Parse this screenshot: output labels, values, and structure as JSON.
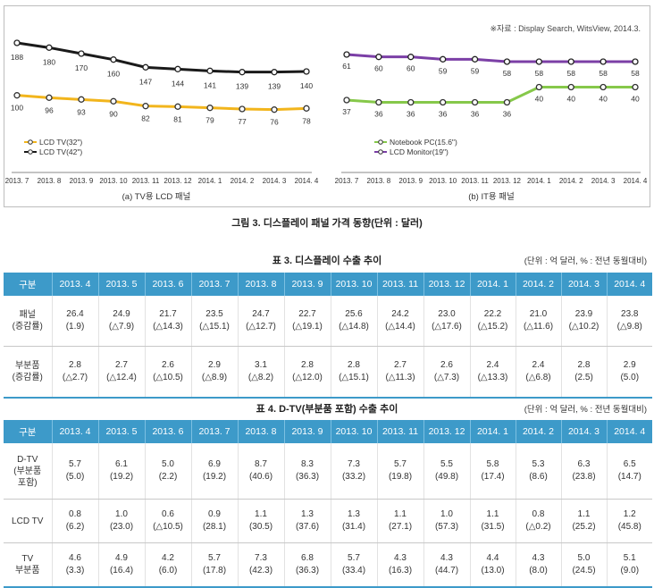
{
  "figure": {
    "source": "※자료 : Display Search, WitsView, 2014.3.",
    "caption": "그림 3. 디스플레이 패널 가격 동향(단위 : 달러)",
    "charts": [
      {
        "subtitle": "(a) TV용 LCD 패널",
        "legend": [
          "LCD TV(32\")",
          "LCD TV(42\")"
        ],
        "categories": [
          "2013. 7",
          "2013. 8",
          "2013. 9",
          "2013. 10",
          "2013. 11",
          "2013. 12",
          "2014. 1",
          "2014. 2",
          "2014. 3",
          "2014. 4"
        ]
      },
      {
        "subtitle": "(b) IT용 패널",
        "legend": [
          "Notebook PC(15.6\")",
          "LCD Monitor(19\")"
        ],
        "categories": [
          "2013. 7",
          "2013. 8",
          "2013. 9",
          "2013. 10",
          "2013. 11",
          "2013. 12",
          "2014. 1",
          "2014. 2",
          "2014. 3",
          "2014. 4"
        ]
      }
    ]
  },
  "chart_data": [
    {
      "type": "line",
      "categories": [
        "2013. 7",
        "2013. 8",
        "2013. 9",
        "2013. 10",
        "2013. 11",
        "2013. 12",
        "2014. 1",
        "2014. 2",
        "2014. 3",
        "2014. 4"
      ],
      "series": [
        {
          "name": "LCD TV(42\")",
          "values": [
            188,
            180,
            170,
            160,
            147,
            144,
            141,
            139,
            139,
            140
          ],
          "color": "#1a1a1a"
        },
        {
          "name": "LCD TV(32\")",
          "values": [
            100,
            96,
            93,
            90,
            82,
            81,
            79,
            77,
            76,
            78
          ],
          "color": "#f2b51c"
        }
      ],
      "ylim": [
        60,
        200
      ]
    },
    {
      "type": "line",
      "categories": [
        "2013. 7",
        "2013. 8",
        "2013. 9",
        "2013. 10",
        "2013. 11",
        "2013. 12",
        "2014. 1",
        "2014. 2",
        "2014. 3",
        "2014. 4"
      ],
      "series": [
        {
          "name": "LCD Monitor(19\")",
          "values": [
            61,
            60,
            60,
            59,
            59,
            58,
            58,
            58,
            58,
            58
          ],
          "color": "#7b3fa6"
        },
        {
          "name": "Notebook PC(15.6\")",
          "values": [
            37,
            36,
            36,
            36,
            36,
            36,
            40,
            40,
            40,
            40
          ],
          "color": "#86c84a"
        }
      ],
      "ylim": [
        25,
        70
      ]
    }
  ],
  "table3": {
    "title": "표 3. 디스플레이 수출 추이",
    "unit": "(단위 : 억 달러, % : 전년 동월대비)",
    "headers": [
      "구분",
      "2013. 4",
      "2013. 5",
      "2013. 6",
      "2013. 7",
      "2013. 8",
      "2013. 9",
      "2013. 10",
      "2013. 11",
      "2013. 12",
      "2014. 1",
      "2014. 2",
      "2014. 3",
      "2014. 4"
    ],
    "rows": [
      {
        "label": [
          "패널",
          "(증감률)"
        ],
        "values": [
          "26.4",
          "24.9",
          "21.7",
          "23.5",
          "24.7",
          "22.7",
          "25.6",
          "24.2",
          "23.0",
          "22.2",
          "21.0",
          "23.9",
          "23.8"
        ],
        "changes": [
          "(1.9)",
          "(△7.9)",
          "(△14.3)",
          "(△15.1)",
          "(△12.7)",
          "(△19.1)",
          "(△14.8)",
          "(△14.4)",
          "(△17.6)",
          "(△15.2)",
          "(△11.6)",
          "(△10.2)",
          "(△9.8)"
        ]
      },
      {
        "label": [
          "부분품",
          "(증감률)"
        ],
        "values": [
          "2.8",
          "2.7",
          "2.6",
          "2.9",
          "3.1",
          "2.8",
          "2.8",
          "2.7",
          "2.6",
          "2.4",
          "2.4",
          "2.8",
          "2.9"
        ],
        "changes": [
          "(△2.7)",
          "(△12.4)",
          "(△10.5)",
          "(△8.9)",
          "(△8.2)",
          "(△12.0)",
          "(△15.1)",
          "(△11.3)",
          "(△7.3)",
          "(△13.3)",
          "(△6.8)",
          "(2.5)",
          "(5.0)"
        ]
      }
    ]
  },
  "table4": {
    "title": "표 4. D-TV(부분품 포함) 수출 추이",
    "unit": "(단위 : 억 달러, % : 전년 동월대비)",
    "headers": [
      "구분",
      "2013. 4",
      "2013. 5",
      "2013. 6",
      "2013. 7",
      "2013. 8",
      "2013. 9",
      "2013. 10",
      "2013. 11",
      "2013. 12",
      "2014. 1",
      "2014. 2",
      "2014. 3",
      "2014. 4"
    ],
    "rows": [
      {
        "label": [
          "D-TV",
          "(부분품",
          "포함)"
        ],
        "values": [
          "5.7",
          "6.1",
          "5.0",
          "6.9",
          "8.7",
          "8.3",
          "7.3",
          "5.7",
          "5.5",
          "5.8",
          "5.3",
          "6.3",
          "6.5"
        ],
        "changes": [
          "(5.0)",
          "(19.2)",
          "(2.2)",
          "(19.2)",
          "(40.6)",
          "(36.3)",
          "(33.2)",
          "(19.8)",
          "(49.8)",
          "(17.4)",
          "(8.6)",
          "(23.8)",
          "(14.7)"
        ]
      },
      {
        "label": [
          "LCD TV"
        ],
        "values": [
          "0.8",
          "1.0",
          "0.6",
          "0.9",
          "1.1",
          "1.3",
          "1.3",
          "1.1",
          "1.0",
          "1.1",
          "0.8",
          "1.1",
          "1.2"
        ],
        "changes": [
          "(6.2)",
          "(23.0)",
          "(△10.5)",
          "(28.1)",
          "(30.5)",
          "(37.6)",
          "(31.4)",
          "(27.1)",
          "(57.3)",
          "(31.5)",
          "(△0.2)",
          "(25.2)",
          "(45.8)"
        ]
      },
      {
        "label": [
          "TV",
          "부분품"
        ],
        "values": [
          "4.6",
          "4.9",
          "4.2",
          "5.7",
          "7.3",
          "6.8",
          "5.7",
          "4.3",
          "4.3",
          "4.4",
          "4.3",
          "5.0",
          "5.1"
        ],
        "changes": [
          "(3.3)",
          "(16.4)",
          "(6.0)",
          "(17.8)",
          "(42.3)",
          "(36.3)",
          "(33.4)",
          "(16.3)",
          "(44.7)",
          "(13.0)",
          "(8.0)",
          "(24.5)",
          "(9.0)"
        ]
      }
    ]
  }
}
